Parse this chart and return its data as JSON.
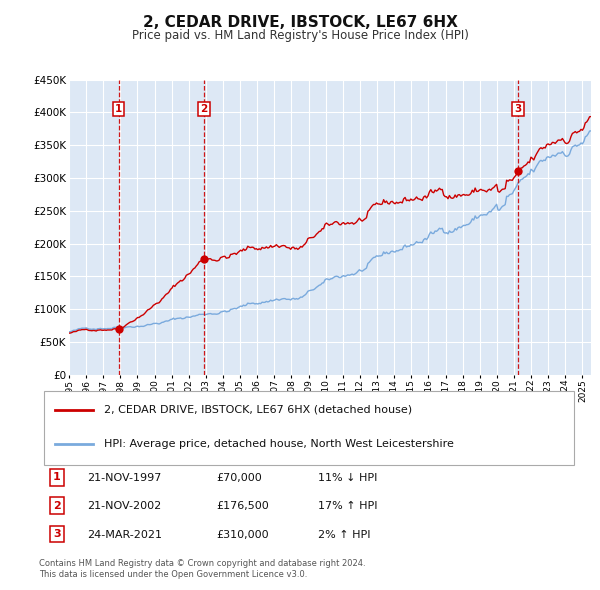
{
  "title": "2, CEDAR DRIVE, IBSTOCK, LE67 6HX",
  "subtitle": "Price paid vs. HM Land Registry's House Price Index (HPI)",
  "title_fontsize": 11,
  "subtitle_fontsize": 8.5,
  "ylim": [
    0,
    450000
  ],
  "yticks": [
    0,
    50000,
    100000,
    150000,
    200000,
    250000,
    300000,
    350000,
    400000,
    450000
  ],
  "ytick_labels": [
    "£0",
    "£50K",
    "£100K",
    "£150K",
    "£200K",
    "£250K",
    "£300K",
    "£350K",
    "£400K",
    "£450K"
  ],
  "xlim_start": 1995.0,
  "xlim_end": 2025.5,
  "xtick_years": [
    1995,
    1996,
    1997,
    1998,
    1999,
    2000,
    2001,
    2002,
    2003,
    2004,
    2005,
    2006,
    2007,
    2008,
    2009,
    2010,
    2011,
    2012,
    2013,
    2014,
    2015,
    2016,
    2017,
    2018,
    2019,
    2020,
    2021,
    2022,
    2023,
    2024,
    2025
  ],
  "background_color": "#ffffff",
  "plot_bg_color": "#dde8f5",
  "grid_color": "#ffffff",
  "red_line_color": "#cc0000",
  "blue_line_color": "#7aaadd",
  "dashed_vline_color": "#cc0000",
  "sale_points": [
    {
      "year": 1997.896,
      "price": 70000,
      "label": "1"
    },
    {
      "year": 2002.896,
      "price": 176500,
      "label": "2"
    },
    {
      "year": 2021.23,
      "price": 310000,
      "label": "3"
    }
  ],
  "vline_years": [
    1997.896,
    2002.896,
    2021.23
  ],
  "legend_red_label": "2, CEDAR DRIVE, IBSTOCK, LE67 6HX (detached house)",
  "legend_blue_label": "HPI: Average price, detached house, North West Leicestershire",
  "table_data": [
    {
      "num": "1",
      "date": "21-NOV-1997",
      "price": "£70,000",
      "hpi": "11% ↓ HPI"
    },
    {
      "num": "2",
      "date": "21-NOV-2002",
      "price": "£176,500",
      "hpi": "17% ↑ HPI"
    },
    {
      "num": "3",
      "date": "24-MAR-2021",
      "price": "£310,000",
      "hpi": "2% ↑ HPI"
    }
  ],
  "footer": "Contains HM Land Registry data © Crown copyright and database right 2024.\nThis data is licensed under the Open Government Licence v3.0."
}
